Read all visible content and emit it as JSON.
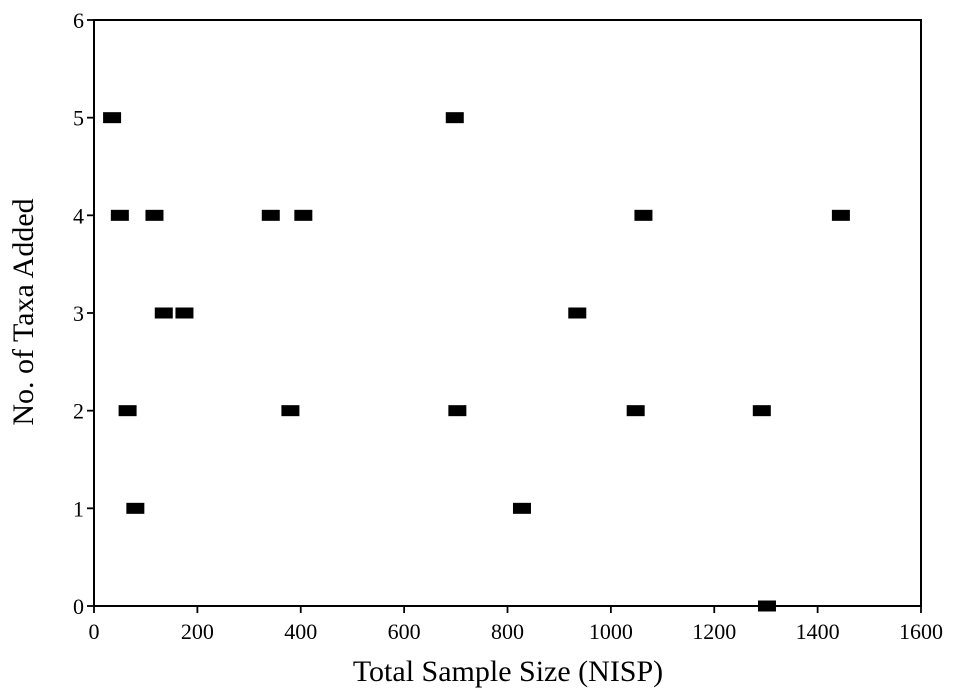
{
  "chart_data": {
    "type": "scatter",
    "title": "",
    "xlabel": "Total Sample Size (NISP)",
    "ylabel": "No. of Taxa Added",
    "xlim": [
      0,
      1600
    ],
    "ylim": [
      0,
      6
    ],
    "xticks": [
      0,
      200,
      400,
      600,
      800,
      1000,
      1200,
      1400,
      1600
    ],
    "yticks": [
      0,
      1,
      2,
      3,
      4,
      5,
      6
    ],
    "grid": false,
    "legend": "none",
    "marker": "square",
    "marker_color": "#000000",
    "series": [
      {
        "points": [
          {
            "x": 35,
            "y": 5
          },
          {
            "x": 50,
            "y": 4
          },
          {
            "x": 65,
            "y": 2
          },
          {
            "x": 80,
            "y": 1
          },
          {
            "x": 117,
            "y": 4
          },
          {
            "x": 135,
            "y": 3
          },
          {
            "x": 175,
            "y": 3
          },
          {
            "x": 342,
            "y": 4
          },
          {
            "x": 380,
            "y": 2
          },
          {
            "x": 405,
            "y": 4
          },
          {
            "x": 698,
            "y": 5
          },
          {
            "x": 703,
            "y": 2
          },
          {
            "x": 828,
            "y": 1
          },
          {
            "x": 935,
            "y": 3
          },
          {
            "x": 1048,
            "y": 2
          },
          {
            "x": 1063,
            "y": 4
          },
          {
            "x": 1292,
            "y": 2
          },
          {
            "x": 1302,
            "y": 0
          },
          {
            "x": 1445,
            "y": 4
          }
        ]
      }
    ]
  }
}
